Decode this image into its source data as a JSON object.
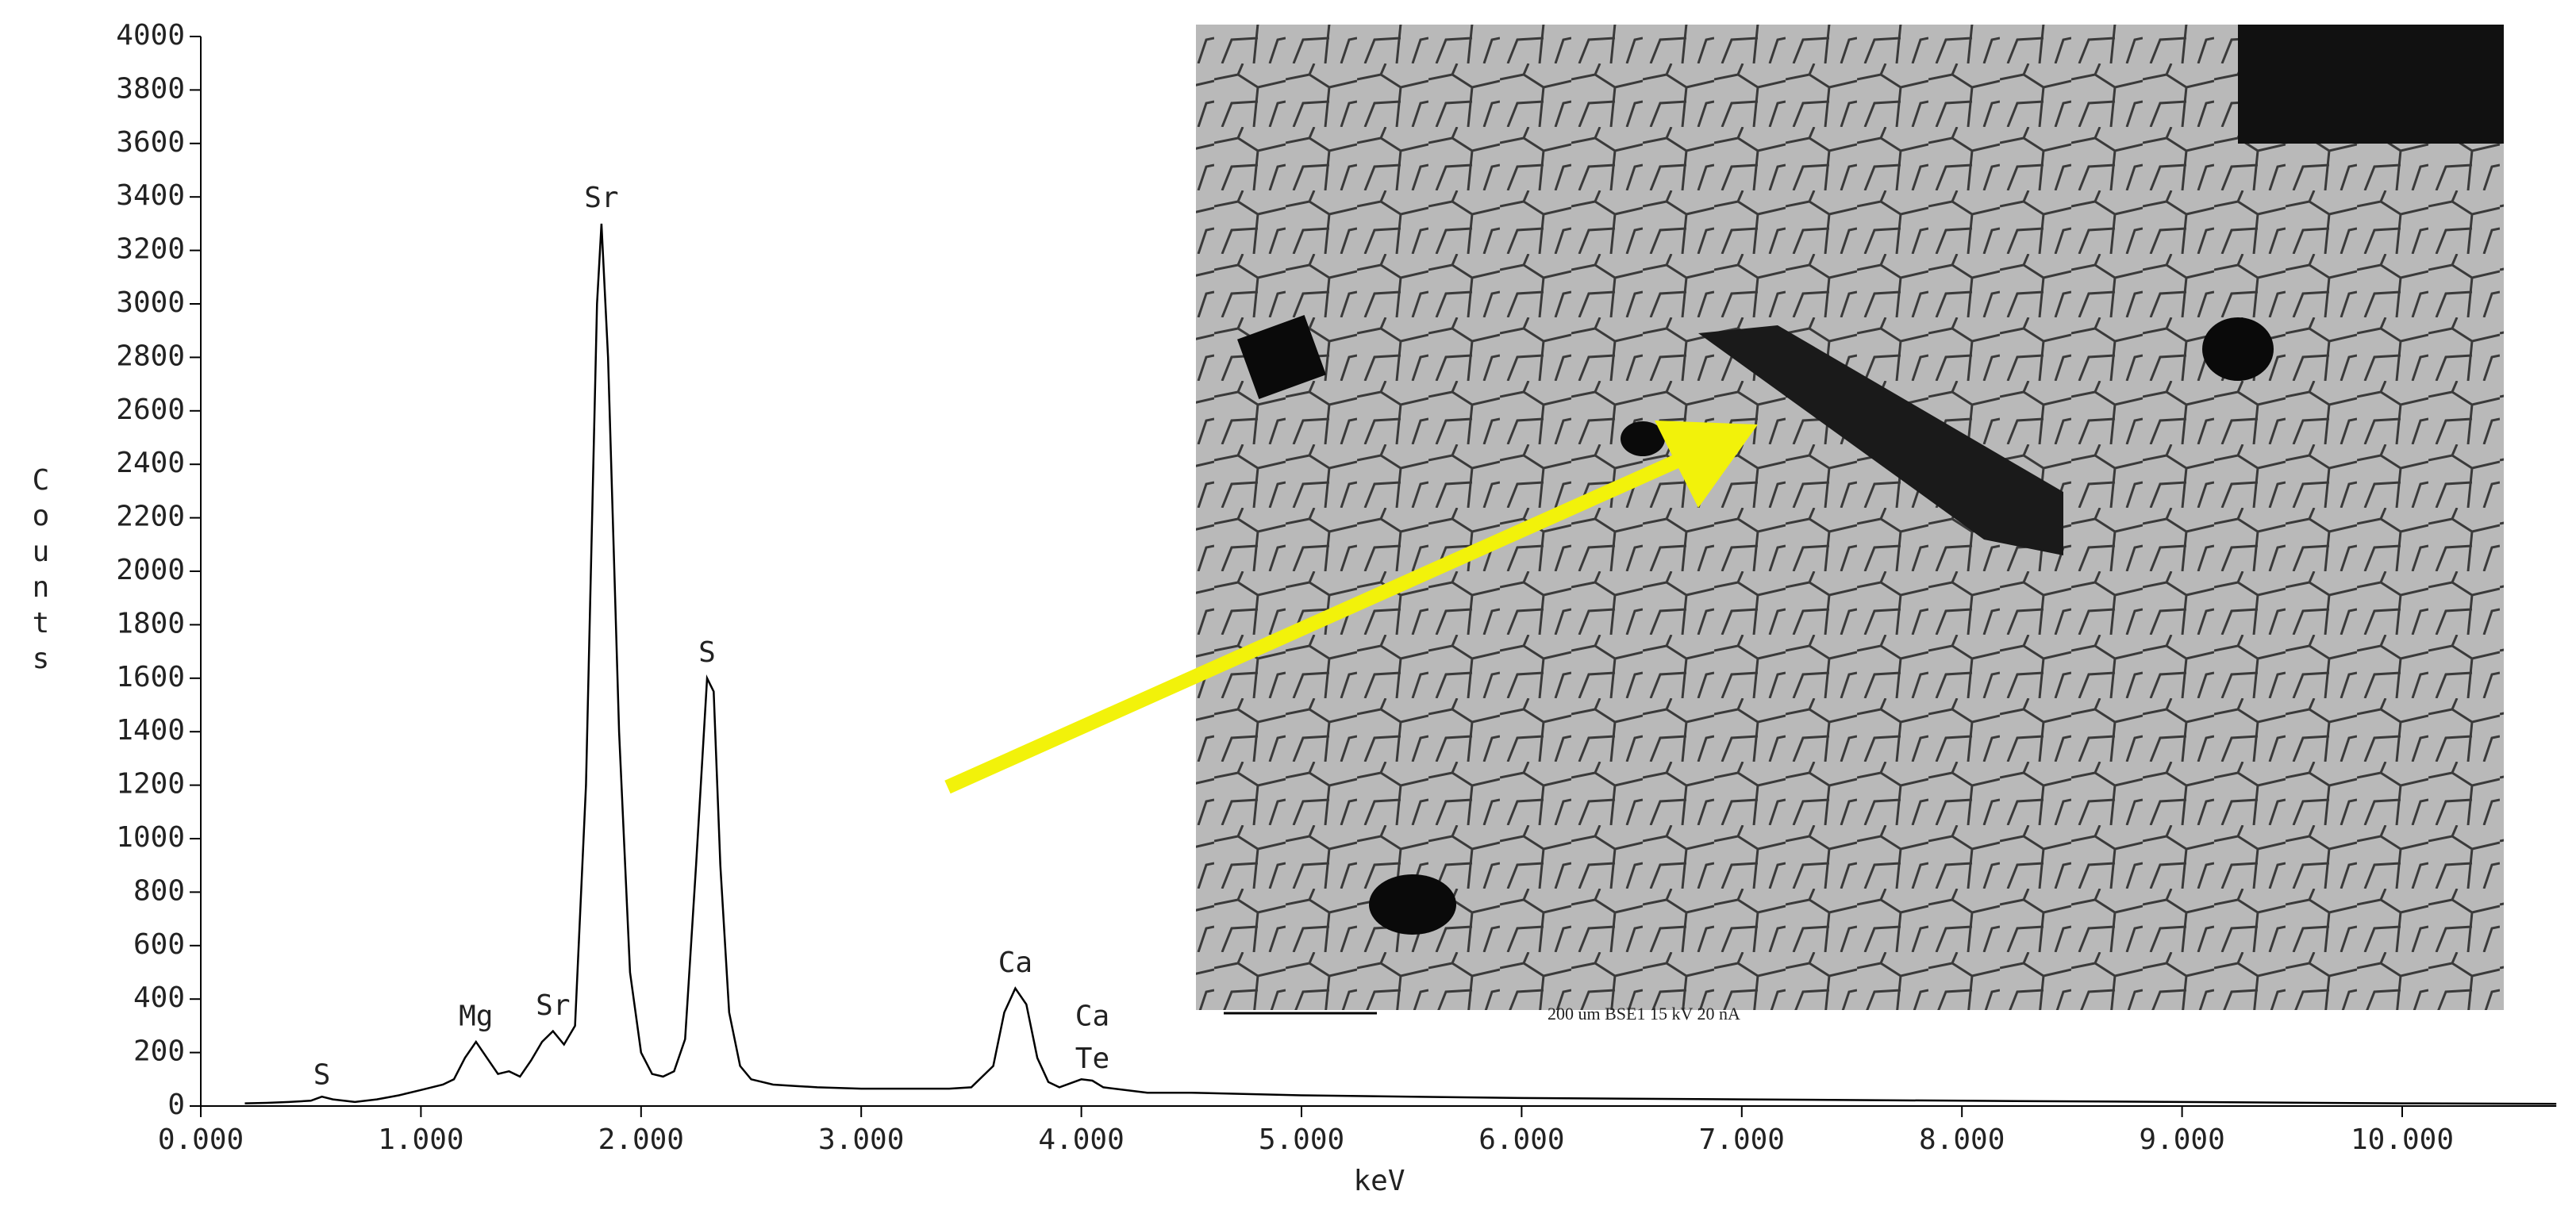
{
  "chart_data": {
    "type": "line",
    "x_label": "keV",
    "y_label": "Counts",
    "color": "#000000",
    "x": [
      0.2,
      0.3,
      0.4,
      0.5,
      0.55,
      0.6,
      0.7,
      0.8,
      0.9,
      1.0,
      1.1,
      1.15,
      1.2,
      1.25,
      1.3,
      1.35,
      1.4,
      1.45,
      1.5,
      1.55,
      1.6,
      1.65,
      1.7,
      1.75,
      1.8,
      1.82,
      1.85,
      1.9,
      1.95,
      2.0,
      2.05,
      2.1,
      2.15,
      2.2,
      2.25,
      2.3,
      2.33,
      2.36,
      2.4,
      2.45,
      2.5,
      2.6,
      2.7,
      2.8,
      3.0,
      3.2,
      3.4,
      3.5,
      3.6,
      3.65,
      3.7,
      3.75,
      3.8,
      3.85,
      3.9,
      4.0,
      4.05,
      4.1,
      4.3,
      4.5,
      5.0,
      5.5,
      6.0,
      7.0,
      8.0,
      9.0,
      10.0,
      10.7
    ],
    "values": [
      10,
      12,
      15,
      20,
      35,
      25,
      15,
      25,
      40,
      60,
      80,
      100,
      180,
      240,
      180,
      120,
      130,
      110,
      170,
      240,
      280,
      230,
      300,
      1200,
      3000,
      3300,
      2800,
      1400,
      500,
      200,
      120,
      110,
      130,
      250,
      900,
      1600,
      1550,
      900,
      350,
      150,
      100,
      80,
      75,
      70,
      65,
      65,
      65,
      70,
      150,
      350,
      440,
      380,
      180,
      90,
      70,
      100,
      95,
      70,
      50,
      50,
      40,
      35,
      30,
      25,
      20,
      15,
      10,
      8
    ],
    "xlim": [
      0,
      10.7
    ],
    "ylim": [
      0,
      4000
    ],
    "xticks": [
      {
        "value": 0,
        "label": "0.000"
      },
      {
        "value": 1,
        "label": "1.000"
      },
      {
        "value": 2,
        "label": "2.000"
      },
      {
        "value": 3,
        "label": "3.000"
      },
      {
        "value": 4,
        "label": "4.000"
      },
      {
        "value": 5,
        "label": "5.000"
      },
      {
        "value": 6,
        "label": "6.000"
      },
      {
        "value": 7,
        "label": "7.000"
      },
      {
        "value": 8,
        "label": "8.000"
      },
      {
        "value": 9,
        "label": "9.000"
      },
      {
        "value": 10,
        "label": "10.000"
      }
    ],
    "yticks": [
      0,
      200,
      400,
      600,
      800,
      1000,
      1200,
      1400,
      1600,
      1800,
      2000,
      2200,
      2400,
      2600,
      2800,
      3000,
      3200,
      3400,
      3600,
      3800,
      4000
    ],
    "annotations": [
      {
        "text": "S",
        "x": 0.55,
        "y": 70
      },
      {
        "text": "Mg",
        "x": 1.25,
        "y": 290
      },
      {
        "text": "Sr",
        "x": 1.6,
        "y": 330
      },
      {
        "text": "Sr",
        "x": 1.82,
        "y": 3350
      },
      {
        "text": "S",
        "x": 2.3,
        "y": 1650
      },
      {
        "text": "Ca",
        "x": 3.7,
        "y": 490
      },
      {
        "text": "Ca",
        "x": 4.05,
        "y": 290
      },
      {
        "text": "Te",
        "x": 4.05,
        "y": 130
      }
    ],
    "image_caption": "200 um   BSE1     15 kV  20 nA"
  }
}
